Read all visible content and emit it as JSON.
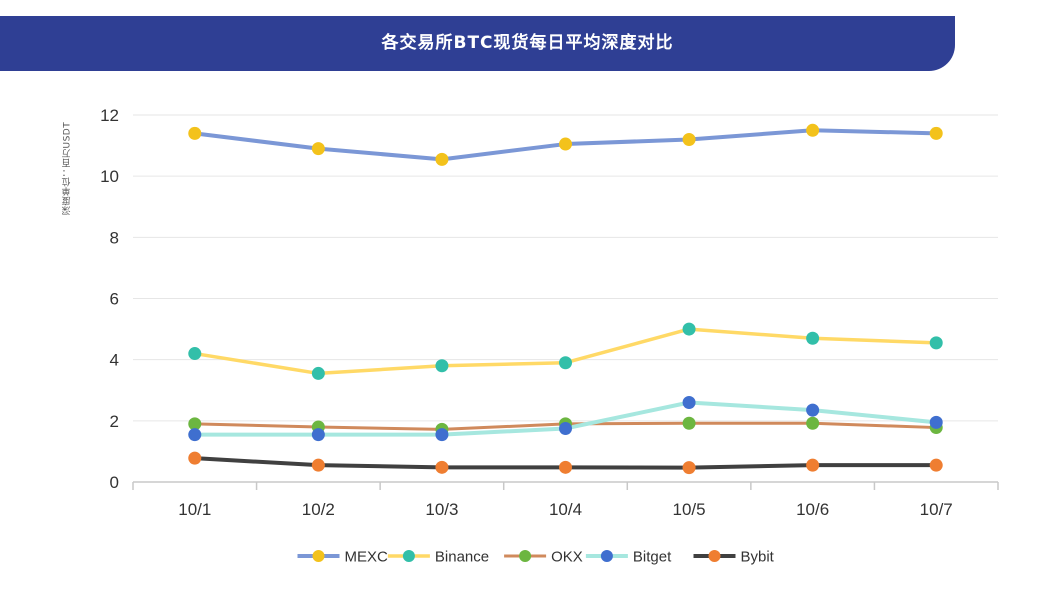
{
  "header": {
    "title": "各交易所BTC现货每日平均深度对比"
  },
  "unit_label": "深度单位：百万USDT",
  "colors": {
    "banner": "#2f3f94",
    "grid": "#e6e6e6",
    "axis": "#c8c8c8"
  },
  "chart_data": {
    "type": "line",
    "title": "各交易所BTC现货每日平均深度对比",
    "xlabel": "",
    "ylabel": "深度单位：百万USDT",
    "categories": [
      "10/1",
      "10/2",
      "10/3",
      "10/4",
      "10/5",
      "10/6",
      "10/7"
    ],
    "ylim": [
      0,
      12
    ],
    "yticks": [
      0,
      2,
      4,
      6,
      8,
      10,
      12
    ],
    "grid": true,
    "legend_position": "bottom",
    "series": [
      {
        "name": "MEXC",
        "values": [
          11.4,
          10.9,
          10.55,
          11.05,
          11.2,
          11.5,
          11.4
        ],
        "line_color": "#7b97d6",
        "marker_color": "#f3c21b",
        "line_width": 4
      },
      {
        "name": "Binance",
        "values": [
          4.2,
          3.55,
          3.8,
          3.9,
          5.0,
          4.7,
          4.55
        ],
        "line_color": "#ffd966",
        "marker_color": "#32bfa9",
        "line_width": 3.5
      },
      {
        "name": "OKX",
        "values": [
          1.9,
          1.8,
          1.72,
          1.9,
          1.92,
          1.92,
          1.78
        ],
        "line_color": "#d08a5c",
        "marker_color": "#6cb640",
        "line_width": 3
      },
      {
        "name": "Bitget",
        "values": [
          1.55,
          1.55,
          1.55,
          1.75,
          2.6,
          2.35,
          1.95
        ],
        "line_color": "#a6e7df",
        "marker_color": "#3f6fcf",
        "line_width": 4
      },
      {
        "name": "Bybit",
        "values": [
          0.78,
          0.55,
          0.48,
          0.48,
          0.47,
          0.55,
          0.55
        ],
        "line_color": "#404040",
        "marker_color": "#ef7e31",
        "line_width": 4
      }
    ]
  }
}
